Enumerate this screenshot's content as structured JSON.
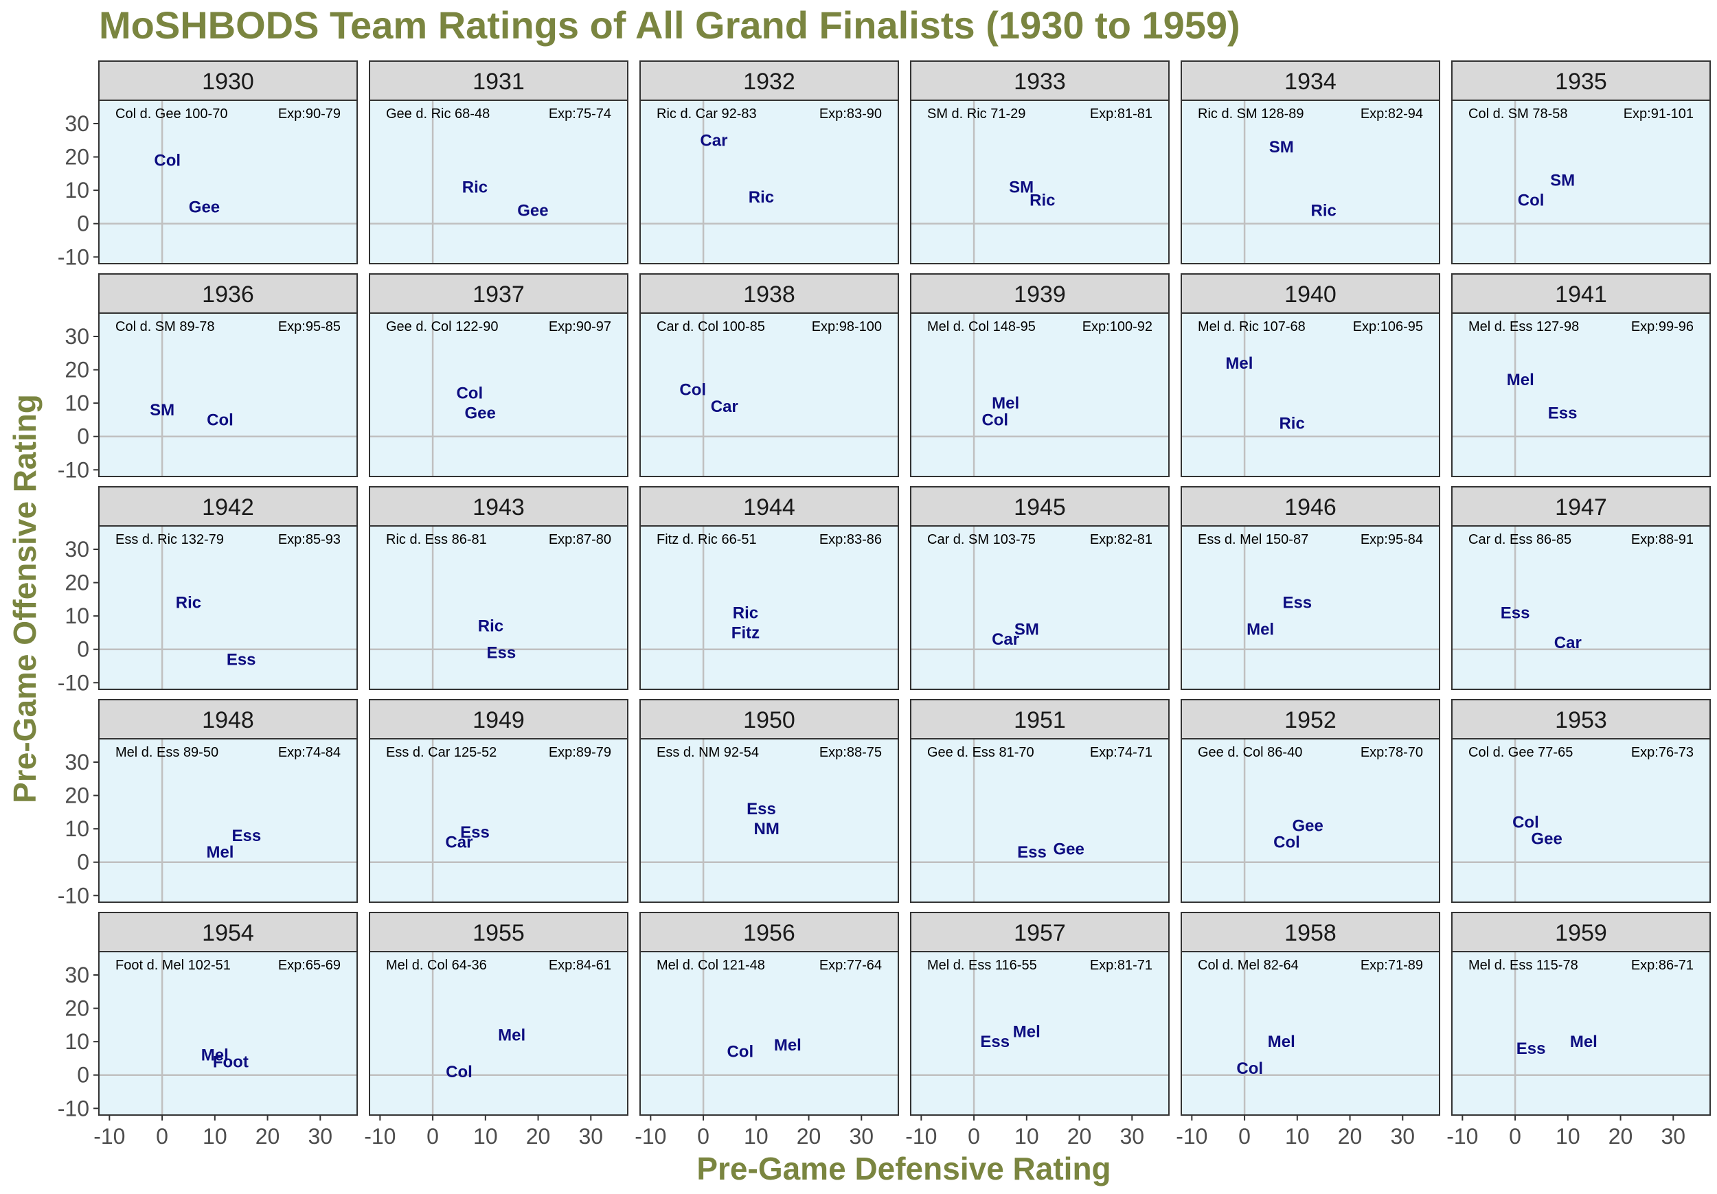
{
  "colors": {
    "title": "#7a8540",
    "panel_bg": "#e4f4fa",
    "strip_bg": "#d9d9d9",
    "border": "#333333",
    "zero_line": "#c0c0c0",
    "team_label": "#0d0d80",
    "tick_label": "#4d4d4d",
    "annotation": "#000000"
  },
  "chart_data": {
    "type": "scatter",
    "title": "MoSHBODS Team Ratings of All Grand Finalists (1930 to 1959)",
    "xlabel": "Pre-Game Defensive Rating",
    "ylabel": "Pre-Game Offensive Rating",
    "xlim": [
      -12,
      37
    ],
    "ylim": [
      -12,
      37
    ],
    "xticks": [
      "-10",
      "0",
      "10",
      "20",
      "30"
    ],
    "yticks": [
      "30",
      "20",
      "10",
      "0",
      "-10"
    ],
    "grid": "zero-lines only",
    "facet_cols": 6,
    "facets": [
      {
        "year": "1930",
        "result": "Col d. Gee 100-70",
        "exp": "Exp:90-79",
        "teams": [
          {
            "label": "Col",
            "x": 1,
            "y": 19
          },
          {
            "label": "Gee",
            "x": 8,
            "y": 5
          }
        ]
      },
      {
        "year": "1931",
        "result": "Gee d. Ric 68-48",
        "exp": "Exp:75-74",
        "teams": [
          {
            "label": "Ric",
            "x": 8,
            "y": 11
          },
          {
            "label": "Gee",
            "x": 19,
            "y": 4
          }
        ]
      },
      {
        "year": "1932",
        "result": "Ric d. Car 92-83",
        "exp": "Exp:83-90",
        "teams": [
          {
            "label": "Car",
            "x": 2,
            "y": 25
          },
          {
            "label": "Ric",
            "x": 11,
            "y": 8
          }
        ]
      },
      {
        "year": "1933",
        "result": "SM d. Ric 71-29",
        "exp": "Exp:81-81",
        "teams": [
          {
            "label": "SM",
            "x": 9,
            "y": 11
          },
          {
            "label": "Ric",
            "x": 13,
            "y": 7
          }
        ]
      },
      {
        "year": "1934",
        "result": "Ric d. SM 128-89",
        "exp": "Exp:82-94",
        "teams": [
          {
            "label": "SM",
            "x": 7,
            "y": 23
          },
          {
            "label": "Ric",
            "x": 15,
            "y": 4
          }
        ]
      },
      {
        "year": "1935",
        "result": "Col d. SM 78-58",
        "exp": "Exp:91-101",
        "teams": [
          {
            "label": "SM",
            "x": 9,
            "y": 13
          },
          {
            "label": "Col",
            "x": 3,
            "y": 7
          }
        ]
      },
      {
        "year": "1936",
        "result": "Col d. SM 89-78",
        "exp": "Exp:95-85",
        "teams": [
          {
            "label": "SM",
            "x": 0,
            "y": 8
          },
          {
            "label": "Col",
            "x": 11,
            "y": 5
          }
        ]
      },
      {
        "year": "1937",
        "result": "Gee d. Col 122-90",
        "exp": "Exp:90-97",
        "teams": [
          {
            "label": "Col",
            "x": 7,
            "y": 13
          },
          {
            "label": "Gee",
            "x": 9,
            "y": 7
          }
        ]
      },
      {
        "year": "1938",
        "result": "Car d. Col 100-85",
        "exp": "Exp:98-100",
        "teams": [
          {
            "label": "Col",
            "x": -2,
            "y": 14
          },
          {
            "label": "Car",
            "x": 4,
            "y": 9
          }
        ]
      },
      {
        "year": "1939",
        "result": "Mel d. Col 148-95",
        "exp": "Exp:100-92",
        "teams": [
          {
            "label": "Mel",
            "x": 6,
            "y": 10
          },
          {
            "label": "Col",
            "x": 4,
            "y": 5
          }
        ]
      },
      {
        "year": "1940",
        "result": "Mel d. Ric 107-68",
        "exp": "Exp:106-95",
        "teams": [
          {
            "label": "Mel",
            "x": -1,
            "y": 22
          },
          {
            "label": "Ric",
            "x": 9,
            "y": 4
          }
        ]
      },
      {
        "year": "1941",
        "result": "Mel d. Ess 127-98",
        "exp": "Exp:99-96",
        "teams": [
          {
            "label": "Mel",
            "x": 1,
            "y": 17
          },
          {
            "label": "Ess",
            "x": 9,
            "y": 7
          }
        ]
      },
      {
        "year": "1942",
        "result": "Ess d. Ric 132-79",
        "exp": "Exp:85-93",
        "teams": [
          {
            "label": "Ric",
            "x": 5,
            "y": 14
          },
          {
            "label": "Ess",
            "x": 15,
            "y": -3
          }
        ]
      },
      {
        "year": "1943",
        "result": "Ric d. Ess 86-81",
        "exp": "Exp:87-80",
        "teams": [
          {
            "label": "Ric",
            "x": 11,
            "y": 7
          },
          {
            "label": "Ess",
            "x": 13,
            "y": -1
          }
        ]
      },
      {
        "year": "1944",
        "result": "Fitz d. Ric 66-51",
        "exp": "Exp:83-86",
        "teams": [
          {
            "label": "Ric",
            "x": 8,
            "y": 11
          },
          {
            "label": "Fitz",
            "x": 8,
            "y": 5
          }
        ]
      },
      {
        "year": "1945",
        "result": "Car d. SM 103-75",
        "exp": "Exp:82-81",
        "teams": [
          {
            "label": "SM",
            "x": 10,
            "y": 6
          },
          {
            "label": "Car",
            "x": 6,
            "y": 3
          }
        ]
      },
      {
        "year": "1946",
        "result": "Ess d. Mel 150-87",
        "exp": "Exp:95-84",
        "teams": [
          {
            "label": "Ess",
            "x": 10,
            "y": 14
          },
          {
            "label": "Mel",
            "x": 3,
            "y": 6
          }
        ]
      },
      {
        "year": "1947",
        "result": "Car d. Ess 86-85",
        "exp": "Exp:88-91",
        "teams": [
          {
            "label": "Ess",
            "x": 0,
            "y": 11
          },
          {
            "label": "Car",
            "x": 10,
            "y": 2
          }
        ]
      },
      {
        "year": "1948",
        "result": "Mel d. Ess 89-50",
        "exp": "Exp:74-84",
        "teams": [
          {
            "label": "Ess",
            "x": 16,
            "y": 8
          },
          {
            "label": "Mel",
            "x": 11,
            "y": 3
          }
        ]
      },
      {
        "year": "1949",
        "result": "Ess d. Car 125-52",
        "exp": "Exp:89-79",
        "teams": [
          {
            "label": "Ess",
            "x": 8,
            "y": 9
          },
          {
            "label": "Car",
            "x": 5,
            "y": 6
          }
        ]
      },
      {
        "year": "1950",
        "result": "Ess d. NM 92-54",
        "exp": "Exp:88-75",
        "teams": [
          {
            "label": "Ess",
            "x": 11,
            "y": 16
          },
          {
            "label": "NM",
            "x": 12,
            "y": 10
          }
        ]
      },
      {
        "year": "1951",
        "result": "Gee d. Ess 81-70",
        "exp": "Exp:74-71",
        "teams": [
          {
            "label": "Ess",
            "x": 11,
            "y": 3
          },
          {
            "label": "Gee",
            "x": 18,
            "y": 4
          }
        ]
      },
      {
        "year": "1952",
        "result": "Gee d. Col 86-40",
        "exp": "Exp:78-70",
        "teams": [
          {
            "label": "Gee",
            "x": 12,
            "y": 11
          },
          {
            "label": "Col",
            "x": 8,
            "y": 6
          }
        ]
      },
      {
        "year": "1953",
        "result": "Col d. Gee 77-65",
        "exp": "Exp:76-73",
        "teams": [
          {
            "label": "Col",
            "x": 2,
            "y": 12
          },
          {
            "label": "Gee",
            "x": 6,
            "y": 7
          }
        ]
      },
      {
        "year": "1954",
        "result": "Foot d. Mel 102-51",
        "exp": "Exp:65-69",
        "teams": [
          {
            "label": "Mel",
            "x": 10,
            "y": 6
          },
          {
            "label": "Foot",
            "x": 13,
            "y": 4
          }
        ]
      },
      {
        "year": "1955",
        "result": "Mel d. Col 64-36",
        "exp": "Exp:84-61",
        "teams": [
          {
            "label": "Mel",
            "x": 15,
            "y": 12
          },
          {
            "label": "Col",
            "x": 5,
            "y": 1
          }
        ]
      },
      {
        "year": "1956",
        "result": "Mel d. Col 121-48",
        "exp": "Exp:77-64",
        "teams": [
          {
            "label": "Col",
            "x": 7,
            "y": 7
          },
          {
            "label": "Mel",
            "x": 16,
            "y": 9
          }
        ]
      },
      {
        "year": "1957",
        "result": "Mel d. Ess 116-55",
        "exp": "Exp:81-71",
        "teams": [
          {
            "label": "Ess",
            "x": 4,
            "y": 10
          },
          {
            "label": "Mel",
            "x": 10,
            "y": 13
          }
        ]
      },
      {
        "year": "1958",
        "result": "Col d. Mel 82-64",
        "exp": "Exp:71-89",
        "teams": [
          {
            "label": "Mel",
            "x": 7,
            "y": 10
          },
          {
            "label": "Col",
            "x": 1,
            "y": 2
          }
        ]
      },
      {
        "year": "1959",
        "result": "Mel d. Ess 115-78",
        "exp": "Exp:86-71",
        "teams": [
          {
            "label": "Ess",
            "x": 3,
            "y": 8
          },
          {
            "label": "Mel",
            "x": 13,
            "y": 10
          }
        ]
      }
    ]
  }
}
